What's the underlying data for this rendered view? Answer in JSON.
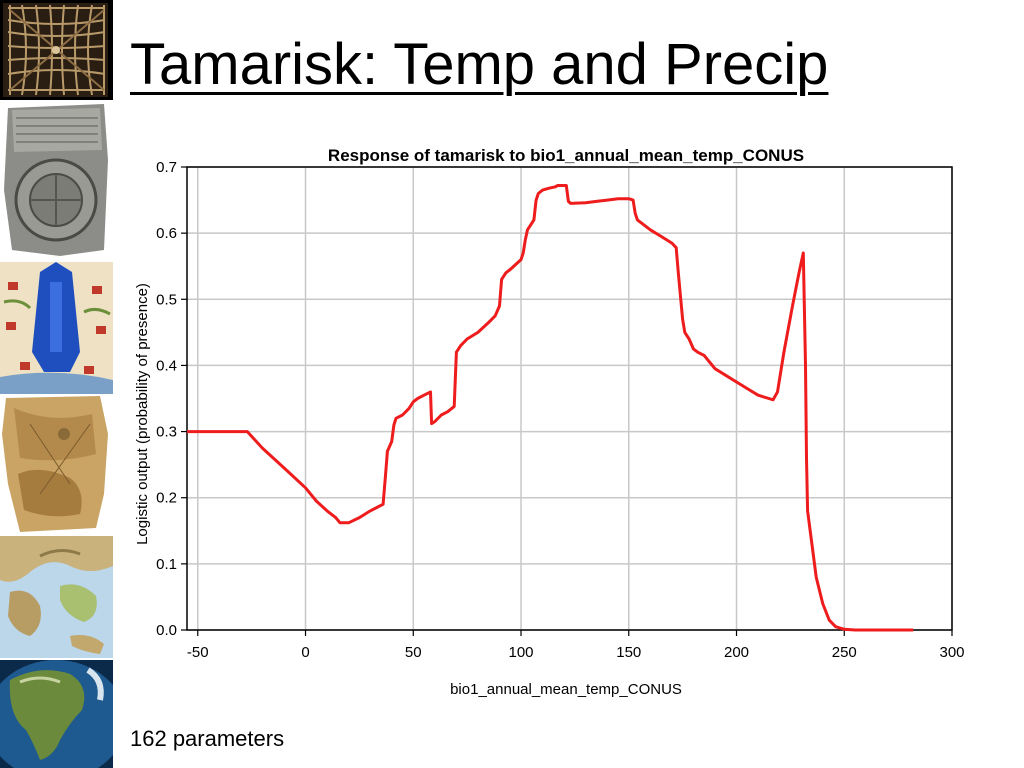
{
  "slide": {
    "title": "Tamarisk: Temp and Precip",
    "footnote": "162 parameters"
  },
  "sidebar": {
    "thumbnails": [
      "stick-chart-thumbnail",
      "clay-tablet-map-thumbnail",
      "illustrated-map-thumbnail",
      "parchment-map-thumbnail",
      "relief-map-thumbnail",
      "globe-thumbnail"
    ]
  },
  "colors": {
    "series": "#ee1c1c",
    "grid": "#c8c8c8",
    "axis": "#000000"
  },
  "chart_data": {
    "type": "line",
    "title": "Response of tamarisk to bio1_annual_mean_temp_CONUS",
    "xlabel": "bio1_annual_mean_temp_CONUS",
    "ylabel": "Logistic output (probability of presence)",
    "xlim": [
      -55,
      300
    ],
    "ylim": [
      0,
      0.7
    ],
    "xticks": [
      -50,
      0,
      50,
      100,
      150,
      200,
      250,
      300
    ],
    "yticks": [
      0.0,
      0.1,
      0.2,
      0.3,
      0.4,
      0.5,
      0.6,
      0.7
    ],
    "grid": true,
    "series": [
      {
        "color": "#ee1c1c",
        "x": [
          -55,
          -27,
          -20,
          -10,
          0,
          5,
          10,
          14,
          16,
          20,
          25,
          30,
          36,
          37,
          38,
          40,
          41,
          42,
          45,
          48,
          50,
          52,
          55,
          58,
          58.5,
          60,
          63,
          66,
          69,
          70,
          72,
          75,
          80,
          85,
          88,
          90,
          91,
          93,
          95,
          100,
          101,
          102,
          103,
          105,
          106,
          107,
          108,
          110,
          113,
          116,
          117,
          119,
          121,
          122,
          123,
          130,
          135,
          140,
          145,
          150,
          152,
          153,
          154,
          156,
          160,
          165,
          170,
          172,
          173,
          175,
          176,
          178,
          180,
          182,
          185,
          190,
          195,
          200,
          205,
          210,
          215,
          217,
          219,
          222,
          226,
          229,
          231,
          232,
          232.5,
          233,
          235,
          237,
          240,
          243,
          246,
          250,
          255,
          260,
          270,
          282
        ],
        "y": [
          0.3,
          0.3,
          0.275,
          0.245,
          0.215,
          0.195,
          0.18,
          0.17,
          0.162,
          0.162,
          0.17,
          0.18,
          0.19,
          0.23,
          0.27,
          0.285,
          0.31,
          0.32,
          0.325,
          0.335,
          0.345,
          0.35,
          0.355,
          0.36,
          0.312,
          0.315,
          0.325,
          0.33,
          0.338,
          0.42,
          0.43,
          0.44,
          0.45,
          0.465,
          0.475,
          0.49,
          0.53,
          0.54,
          0.545,
          0.56,
          0.57,
          0.59,
          0.605,
          0.615,
          0.62,
          0.65,
          0.66,
          0.665,
          0.668,
          0.67,
          0.672,
          0.672,
          0.672,
          0.648,
          0.645,
          0.646,
          0.648,
          0.65,
          0.652,
          0.652,
          0.65,
          0.63,
          0.62,
          0.615,
          0.605,
          0.595,
          0.585,
          0.578,
          0.54,
          0.47,
          0.45,
          0.44,
          0.425,
          0.42,
          0.415,
          0.395,
          0.385,
          0.375,
          0.365,
          0.355,
          0.35,
          0.348,
          0.36,
          0.42,
          0.49,
          0.54,
          0.57,
          0.4,
          0.26,
          0.18,
          0.13,
          0.08,
          0.04,
          0.015,
          0.005,
          0.001,
          0.0,
          0.0,
          0.0,
          0.0
        ]
      }
    ]
  }
}
